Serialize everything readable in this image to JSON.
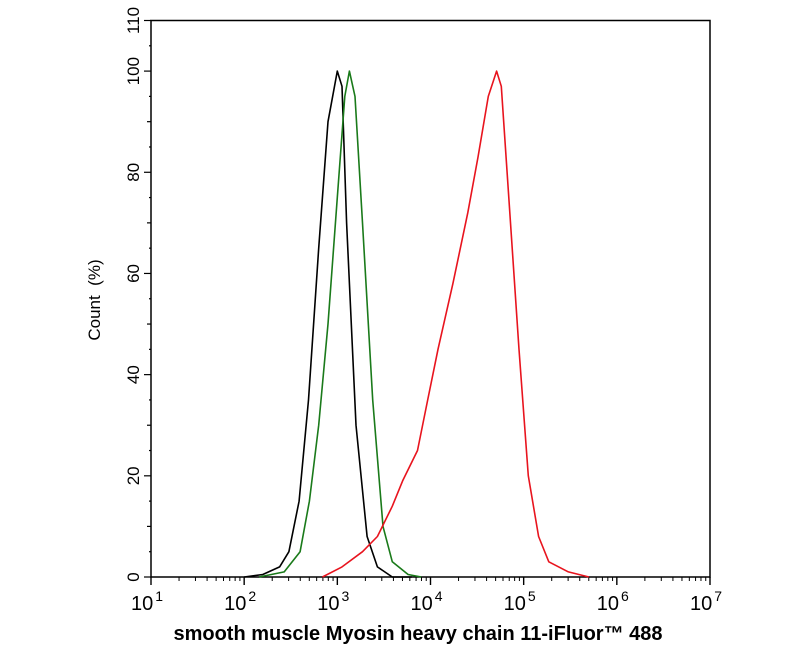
{
  "chart_data": {
    "type": "line",
    "title": "",
    "xlabel": "smooth muscle Myosin heavy chain 11-iFluor™ 488",
    "ylabel": "Count  (%)",
    "xscale": "log",
    "xlim_log10": [
      1,
      7
    ],
    "ylim": [
      0,
      110
    ],
    "x_ticks": [
      {
        "base": "10",
        "exp": "1"
      },
      {
        "base": "10",
        "exp": "2"
      },
      {
        "base": "10",
        "exp": "3"
      },
      {
        "base": "10",
        "exp": "4"
      },
      {
        "base": "10",
        "exp": "5"
      },
      {
        "base": "10",
        "exp": "6"
      },
      {
        "base": "10",
        "exp": "7"
      }
    ],
    "y_ticks": [
      "0",
      "20",
      "40",
      "60",
      "80",
      "100",
      "110"
    ],
    "y_tick_values": [
      0,
      20,
      40,
      60,
      80,
      100,
      110
    ],
    "grid": false,
    "series": [
      {
        "name": "black",
        "color": "#000000",
        "log10x": [
          2.0,
          2.2,
          2.38,
          2.48,
          2.59,
          2.69,
          2.8,
          2.9,
          3.0,
          3.05,
          3.1,
          3.2,
          3.32,
          3.43,
          3.59,
          3.8
        ],
        "y": [
          0,
          0.5,
          2,
          5,
          15,
          35,
          65,
          90,
          100,
          97,
          70,
          30,
          8,
          2,
          0,
          0
        ]
      },
      {
        "name": "green",
        "color": "#1a7a1a",
        "log10x": [
          2.16,
          2.43,
          2.6,
          2.7,
          2.8,
          2.9,
          3.0,
          3.08,
          3.13,
          3.19,
          3.27,
          3.38,
          3.49,
          3.59,
          3.76,
          3.9
        ],
        "y": [
          0,
          1,
          5,
          15,
          30,
          50,
          75,
          95,
          100,
          95,
          70,
          35,
          10,
          3,
          0.5,
          0
        ]
      },
      {
        "name": "red",
        "color": "#e8141e",
        "log10x": [
          2.84,
          3.05,
          3.27,
          3.43,
          3.59,
          3.7,
          3.86,
          3.97,
          4.08,
          4.24,
          4.4,
          4.51,
          4.62,
          4.71,
          4.76,
          4.84,
          4.95,
          5.05,
          5.16,
          5.27,
          5.48,
          5.7
        ],
        "y": [
          0,
          2,
          5,
          8,
          14,
          19,
          25,
          35,
          45,
          58,
          72,
          83,
          95,
          100,
          97,
          75,
          45,
          20,
          8,
          3,
          1,
          0
        ]
      }
    ]
  }
}
